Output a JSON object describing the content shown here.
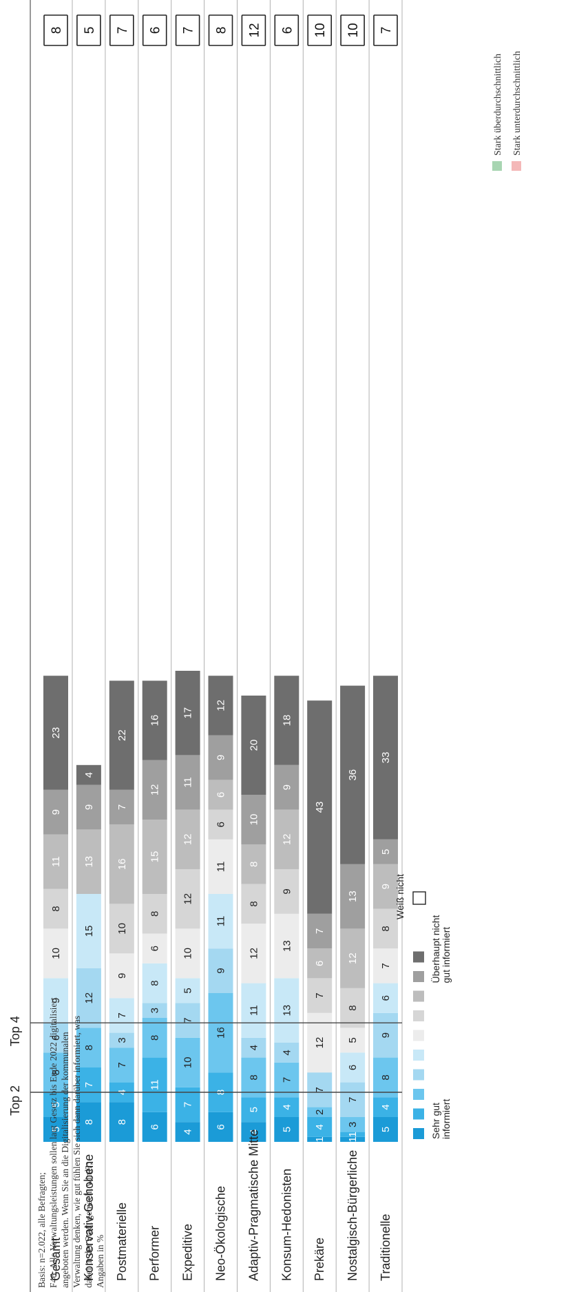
{
  "chart_data": {
    "type": "bar",
    "stacked": true,
    "orientation": "horizontal, rotated 90°",
    "categories": [
      "Gesamt",
      "Konservativ-Gehobene",
      "Postmaterielle",
      "Performer",
      "Expeditive",
      "Neo-Ökologische",
      "Adaptiv-Pragmatische Mitte",
      "Konsum-Hedonisten",
      "Prekäre",
      "Nostalgisch-Bürgerliche",
      "Traditionelle"
    ],
    "highlight_category": "Gesamt",
    "highlight_color": "#e05252",
    "segment_colors": [
      "#1b9bd7",
      "#3bb2e6",
      "#6cc6ee",
      "#a4d8f1",
      "#c8e8f7",
      "#ececec",
      "#d6d6d6",
      "#bdbdbd",
      "#9f9f9f",
      "#6e6e6e"
    ],
    "values": [
      [
        5,
        5,
        8,
        6,
        9,
        10,
        8,
        11,
        9,
        23
      ],
      [
        8,
        7,
        8,
        12,
        15,
        null,
        null,
        13,
        9,
        4
      ],
      [
        8,
        4,
        7,
        3,
        7,
        9,
        10,
        16,
        7,
        22
      ],
      [
        6,
        11,
        8,
        3,
        8,
        6,
        8,
        15,
        12,
        16
      ],
      [
        4,
        7,
        10,
        7,
        5,
        10,
        12,
        12,
        11,
        17
      ],
      [
        6,
        8,
        16,
        9,
        11,
        11,
        6,
        6,
        9,
        12
      ],
      [
        4,
        5,
        8,
        4,
        11,
        12,
        8,
        8,
        10,
        20
      ],
      [
        5,
        4,
        7,
        4,
        13,
        13,
        9,
        12,
        9,
        18
      ],
      [
        1,
        4,
        2,
        7,
        12,
        7,
        6,
        7,
        43
      ],
      [
        1,
        1,
        3,
        7,
        6,
        5,
        8,
        12,
        13,
        36
      ],
      [
        5,
        4,
        8,
        9,
        6,
        7,
        8,
        9,
        5,
        33
      ]
    ],
    "colors_per_value": [
      [
        0,
        1,
        2,
        3,
        4,
        5,
        6,
        7,
        8,
        9
      ],
      [
        0,
        1,
        2,
        3,
        4,
        5,
        6,
        7,
        8,
        9
      ],
      [
        0,
        1,
        2,
        3,
        4,
        5,
        6,
        7,
        8,
        9
      ],
      [
        0,
        1,
        2,
        3,
        4,
        5,
        6,
        7,
        8,
        9
      ],
      [
        0,
        1,
        2,
        3,
        4,
        5,
        6,
        7,
        8,
        9
      ],
      [
        0,
        1,
        2,
        3,
        4,
        5,
        6,
        7,
        8,
        9
      ],
      [
        0,
        1,
        2,
        3,
        4,
        5,
        6,
        7,
        8,
        9
      ],
      [
        0,
        1,
        2,
        3,
        4,
        5,
        6,
        7,
        8,
        9
      ],
      [
        0,
        1,
        2,
        3,
        5,
        6,
        7,
        8,
        9
      ],
      [
        0,
        1,
        2,
        3,
        4,
        5,
        6,
        7,
        8,
        9
      ],
      [
        0,
        1,
        2,
        3,
        4,
        5,
        6,
        7,
        8,
        9
      ]
    ],
    "weiss_nicht": [
      8,
      5,
      7,
      6,
      7,
      8,
      12,
      6,
      10,
      10,
      7
    ],
    "top_lines": [
      {
        "label": "Top 2",
        "after_segments": 2
      },
      {
        "label": "Top 4",
        "after_segments": 4
      }
    ],
    "legend": {
      "start_label": "Sehr gut\ninformiert",
      "end_label": "Überhaupt nicht\ngut informiert",
      "unknown_label": "Weiß nicht"
    },
    "significance_legend": [
      {
        "label": "Stark überdurchschnittlich",
        "color": "#a8d5b2"
      },
      {
        "label": "Stark unterdurchschnittlich",
        "color": "#f4b8b8"
      }
    ],
    "footnote": "Basis: n=2.022, alle Befragten;\nF46: Alle Verwaltungsleistungen sollen laut Gesetz bis Ende 2022 digitalisiert\nangeboten werden. Wenn Sie an die Digitalisierung der kommunalen\nVerwaltung denken, wie gut fühlen Sie sich dann darüber informiert, was\ndabei in der Stadt gemacht wird?;\nAngaben in %"
  }
}
